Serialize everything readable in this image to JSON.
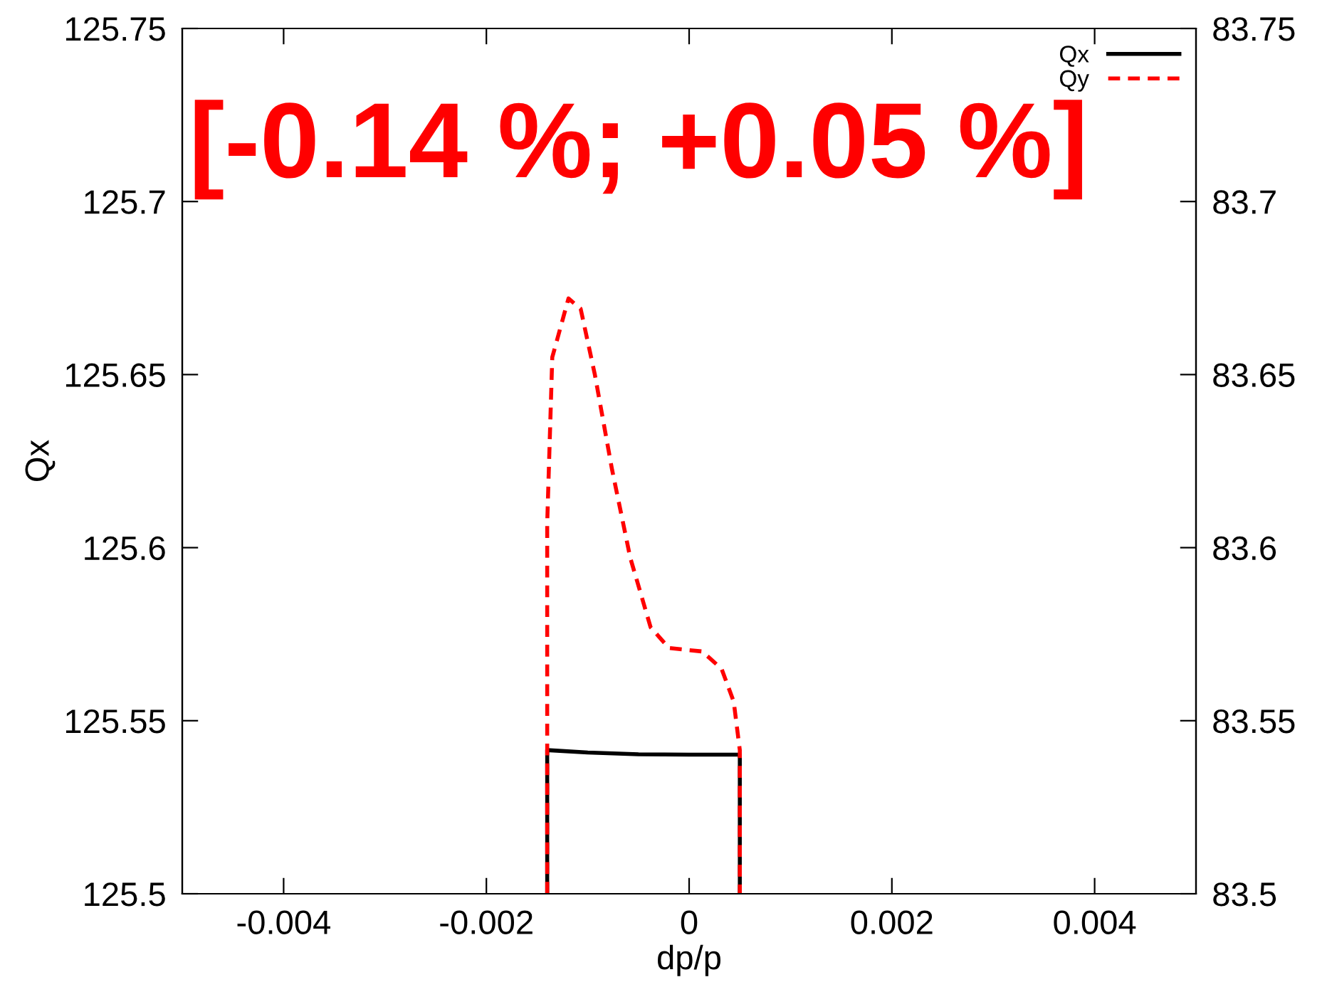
{
  "chart_data": {
    "type": "line",
    "xlabel": "dp/p",
    "ylabel": "Qx",
    "annotations": [
      "[-0.14 %; +0.05 %]"
    ],
    "series": [
      {
        "name": "Qx",
        "color": "#000000",
        "line_style": "solid",
        "x": [
          -0.0014,
          -0.0014,
          -0.001,
          -0.0005,
          0,
          0.0005,
          0.0005
        ],
        "values": [
          125.5,
          125.5415,
          125.5408,
          125.5403,
          125.5402,
          125.5402,
          125.5
        ]
      },
      {
        "name": "Qy",
        "color": "#ff0000",
        "line_style": "dashed",
        "axis": "y2",
        "x": [
          -0.0014,
          -0.0014,
          -0.00135,
          -0.00119,
          -0.00107,
          -0.00093,
          -0.00076,
          -0.00058,
          -0.00038,
          -0.0002,
          0.00013,
          0.00032,
          0.00044,
          0.0005,
          0.0005
        ],
        "values": [
          83.5,
          83.607,
          83.655,
          83.672,
          83.669,
          83.65,
          83.6225,
          83.597,
          83.577,
          83.571,
          83.57,
          83.565,
          83.5555,
          83.5415,
          83.5
        ]
      }
    ],
    "xlim": [
      -0.005,
      0.005
    ],
    "xticks": [
      -0.004,
      -0.002,
      0,
      0.002,
      0.004
    ],
    "ylim": [
      125.5,
      125.75
    ],
    "yticks": [
      125.5,
      125.55,
      125.6,
      125.65,
      125.7,
      125.75
    ],
    "y2lim": [
      83.5,
      83.75
    ],
    "y2ticks": [
      83.5,
      83.55,
      83.6,
      83.65,
      83.7,
      83.75
    ],
    "legend": "top right",
    "grid": false,
    "marker": "none"
  }
}
